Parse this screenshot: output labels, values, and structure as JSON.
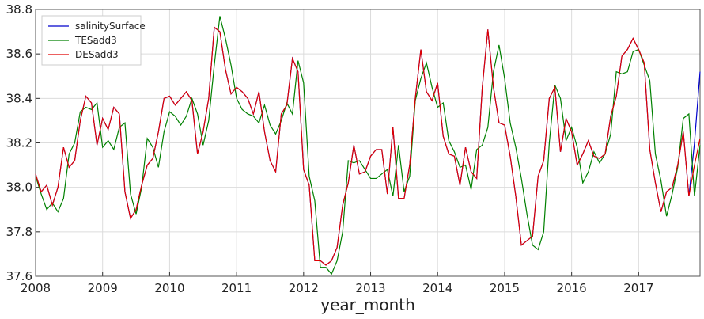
{
  "chart_data": {
    "type": "line",
    "xlabel": "year_month",
    "x": [
      2008,
      2008.0833,
      2008.1667,
      2008.25,
      2008.3333,
      2008.4167,
      2008.5,
      2008.5833,
      2008.6667,
      2008.75,
      2008.8333,
      2008.9167,
      2009,
      2009.0833,
      2009.1667,
      2009.25,
      2009.3333,
      2009.4167,
      2009.5,
      2009.5833,
      2009.6667,
      2009.75,
      2009.8333,
      2009.9167,
      2010,
      2010.0833,
      2010.1667,
      2010.25,
      2010.3333,
      2010.4167,
      2010.5,
      2010.5833,
      2010.6667,
      2010.75,
      2010.8333,
      2010.9167,
      2011,
      2011.0833,
      2011.1667,
      2011.25,
      2011.3333,
      2011.4167,
      2011.5,
      2011.5833,
      2011.6667,
      2011.75,
      2011.8333,
      2011.9167,
      2012,
      2012.0833,
      2012.1667,
      2012.25,
      2012.3333,
      2012.4167,
      2012.5,
      2012.5833,
      2012.6667,
      2012.75,
      2012.8333,
      2012.9167,
      2013,
      2013.0833,
      2013.1667,
      2013.25,
      2013.3333,
      2013.4167,
      2013.5,
      2013.5833,
      2013.6667,
      2013.75,
      2013.8333,
      2013.9167,
      2014,
      2014.0833,
      2014.1667,
      2014.25,
      2014.3333,
      2014.4167,
      2014.5,
      2014.5833,
      2014.6667,
      2014.75,
      2014.8333,
      2014.9167,
      2015,
      2015.0833,
      2015.1667,
      2015.25,
      2015.3333,
      2015.4167,
      2015.5,
      2015.5833,
      2015.6667,
      2015.75,
      2015.8333,
      2015.9167,
      2016,
      2016.0833,
      2016.1667,
      2016.25,
      2016.3333,
      2016.4167,
      2016.5,
      2016.5833,
      2016.6667,
      2016.75,
      2016.8333,
      2016.9167,
      2017,
      2017.0833,
      2017.1667,
      2017.25,
      2017.3333,
      2017.4167,
      2017.5,
      2017.5833,
      2017.6667,
      2017.75,
      2017.8333,
      2017.9167
    ],
    "series": [
      {
        "name": "salinitySurface",
        "color": "#0000cc",
        "values": [
          38.06,
          37.98,
          38.01,
          37.92,
          38.0,
          38.18,
          38.09,
          38.12,
          38.3,
          38.41,
          38.38,
          38.19,
          38.31,
          38.26,
          38.36,
          38.33,
          37.98,
          37.86,
          37.9,
          38.01,
          38.1,
          38.13,
          38.25,
          38.4,
          38.41,
          38.37,
          38.4,
          38.43,
          38.39,
          38.15,
          38.25,
          38.4,
          38.72,
          38.7,
          38.53,
          38.42,
          38.45,
          38.43,
          38.4,
          38.33,
          38.43,
          38.25,
          38.12,
          38.07,
          38.33,
          38.37,
          38.58,
          38.52,
          38.08,
          38.01,
          37.67,
          37.67,
          37.65,
          37.67,
          37.73,
          37.92,
          38.02,
          38.19,
          38.06,
          38.07,
          38.14,
          38.17,
          38.17,
          37.97,
          38.27,
          37.95,
          37.95,
          38.1,
          38.4,
          38.62,
          38.43,
          38.39,
          38.47,
          38.23,
          38.15,
          38.14,
          38.01,
          38.18,
          38.07,
          38.04,
          38.45,
          38.71,
          38.45,
          38.29,
          38.28,
          38.14,
          37.96,
          37.74,
          37.76,
          37.78,
          38.05,
          38.12,
          38.4,
          38.45,
          38.16,
          38.31,
          38.25,
          38.1,
          38.15,
          38.21,
          38.14,
          38.13,
          38.15,
          38.32,
          38.41,
          38.59,
          38.62,
          38.67,
          38.62,
          38.56,
          38.17,
          38.02,
          37.89,
          37.98,
          38.0,
          38.1,
          38.25,
          37.96,
          38.2,
          38.52
        ]
      },
      {
        "name": "TESadd3",
        "color": "#008000",
        "values": [
          38.05,
          37.97,
          37.9,
          37.93,
          37.89,
          37.95,
          38.15,
          38.2,
          38.34,
          38.36,
          38.35,
          38.38,
          38.18,
          38.21,
          38.17,
          38.27,
          38.29,
          37.97,
          37.88,
          38.0,
          38.22,
          38.18,
          38.09,
          38.25,
          38.34,
          38.32,
          38.28,
          38.32,
          38.4,
          38.33,
          38.19,
          38.3,
          38.55,
          38.77,
          38.67,
          38.55,
          38.4,
          38.35,
          38.33,
          38.32,
          38.29,
          38.37,
          38.28,
          38.24,
          38.3,
          38.38,
          38.33,
          38.57,
          38.47,
          38.05,
          37.94,
          37.64,
          37.64,
          37.61,
          37.67,
          37.8,
          38.12,
          38.11,
          38.12,
          38.08,
          38.04,
          38.04,
          38.06,
          38.08,
          37.96,
          38.19,
          37.98,
          38.05,
          38.39,
          38.49,
          38.56,
          38.45,
          38.36,
          38.38,
          38.21,
          38.16,
          38.09,
          38.1,
          37.99,
          38.17,
          38.19,
          38.27,
          38.52,
          38.64,
          38.49,
          38.29,
          38.18,
          38.04,
          37.88,
          37.74,
          37.72,
          37.8,
          38.2,
          38.46,
          38.4,
          38.21,
          38.27,
          38.18,
          38.02,
          38.07,
          38.16,
          38.11,
          38.15,
          38.24,
          38.52,
          38.51,
          38.52,
          38.61,
          38.62,
          38.55,
          38.48,
          38.15,
          38.03,
          37.87,
          37.97,
          38.09,
          38.31,
          38.33,
          37.96,
          38.19
        ]
      },
      {
        "name": "DESadd3",
        "color": "#e00000",
        "values": [
          38.06,
          37.98,
          38.01,
          37.92,
          38.0,
          38.18,
          38.09,
          38.12,
          38.3,
          38.41,
          38.38,
          38.19,
          38.31,
          38.26,
          38.36,
          38.33,
          37.98,
          37.86,
          37.9,
          38.01,
          38.1,
          38.13,
          38.25,
          38.4,
          38.41,
          38.37,
          38.4,
          38.43,
          38.39,
          38.15,
          38.25,
          38.4,
          38.72,
          38.7,
          38.53,
          38.42,
          38.45,
          38.43,
          38.4,
          38.33,
          38.43,
          38.25,
          38.12,
          38.07,
          38.33,
          38.37,
          38.58,
          38.52,
          38.08,
          38.01,
          37.67,
          37.67,
          37.65,
          37.67,
          37.73,
          37.92,
          38.02,
          38.19,
          38.06,
          38.07,
          38.14,
          38.17,
          38.17,
          37.97,
          38.27,
          37.95,
          37.95,
          38.1,
          38.4,
          38.62,
          38.43,
          38.39,
          38.47,
          38.23,
          38.15,
          38.14,
          38.01,
          38.18,
          38.07,
          38.04,
          38.45,
          38.71,
          38.45,
          38.29,
          38.28,
          38.14,
          37.96,
          37.74,
          37.76,
          37.78,
          38.05,
          38.12,
          38.4,
          38.45,
          38.16,
          38.31,
          38.25,
          38.1,
          38.15,
          38.21,
          38.14,
          38.13,
          38.15,
          38.32,
          38.41,
          38.59,
          38.62,
          38.67,
          38.62,
          38.56,
          38.17,
          38.02,
          37.89,
          37.98,
          38.0,
          38.1,
          38.25,
          37.96,
          38.1,
          38.22
        ]
      }
    ],
    "xlim": [
      2008,
      2017.9167
    ],
    "xticks": [
      2008,
      2009,
      2010,
      2011,
      2012,
      2013,
      2014,
      2015,
      2016,
      2017
    ],
    "ylim": [
      37.6,
      38.8
    ],
    "yticks": [
      37.6,
      37.8,
      {
        "value": 38,
        "label": "38.0"
      },
      38.2,
      38.4,
      38.6,
      38.8
    ],
    "grid": true,
    "legend": "upper left"
  }
}
